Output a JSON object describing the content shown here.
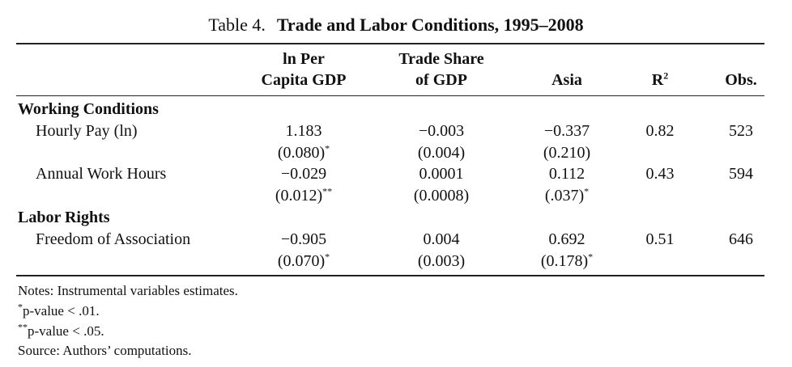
{
  "table": {
    "label": "Table 4.",
    "title": "Trade and Labor Conditions, 1995–2008",
    "columns": [
      {
        "line1": "ln Per",
        "line2": "Capita GDP"
      },
      {
        "line1": "Trade Share",
        "line2": "of GDP"
      },
      {
        "line1": "",
        "line2": "Asia"
      },
      {
        "line1": "",
        "line2": "R",
        "sup": "2"
      },
      {
        "line1": "",
        "line2": "Obs."
      }
    ],
    "sections": [
      {
        "name": "Working Conditions",
        "rows": [
          {
            "label": "Hourly Pay (ln)",
            "est": [
              "1.183",
              "−0.003",
              "−0.337",
              "0.82",
              "523"
            ],
            "se": [
              "(0.080)",
              "(0.004)",
              "(0.210)"
            ],
            "se_sig": [
              "*",
              "",
              ""
            ]
          },
          {
            "label": "Annual Work Hours",
            "est": [
              "−0.029",
              "0.0001",
              "0.112",
              "0.43",
              "594"
            ],
            "se": [
              "(0.012)",
              "(0.0008)",
              "(.037)"
            ],
            "se_sig": [
              "**",
              "",
              "*"
            ]
          }
        ]
      },
      {
        "name": "Labor Rights",
        "rows": [
          {
            "label": "Freedom of Association",
            "est": [
              "−0.905",
              "0.004",
              "0.692",
              "0.51",
              "646"
            ],
            "se": [
              "(0.070)",
              "(0.003)",
              "(0.178)"
            ],
            "se_sig": [
              "*",
              "",
              "*"
            ]
          }
        ]
      }
    ],
    "notes": [
      {
        "sup": "",
        "text": "Notes: Instrumental variables estimates."
      },
      {
        "sup": "*",
        "text": "p-value < .01."
      },
      {
        "sup": "**",
        "text": "p-value < .05."
      },
      {
        "sup": "",
        "text": "Source: Authors’ computations."
      }
    ]
  }
}
